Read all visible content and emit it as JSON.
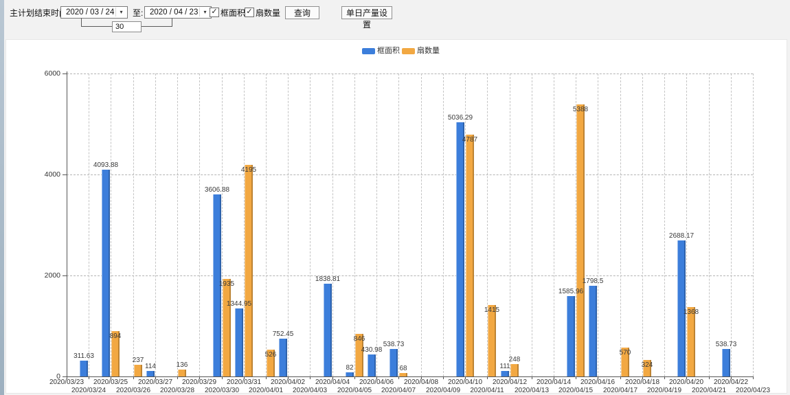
{
  "icons": {
    "check": "✓",
    "dropdown": "▾"
  },
  "toolbar": {
    "label": "主计划结束时间:",
    "date_from": "2020 / 03 / 24",
    "to_label": "至:",
    "date_to": "2020 / 04 / 23",
    "interval_days": "30",
    "checkbox_frame_label": "框面积",
    "checkbox_fans_label": "扇数量",
    "query_button": "查询",
    "daily_output_button": "单日产量设置"
  },
  "legend": [
    {
      "label": "框面积",
      "color": "#3c7edb"
    },
    {
      "label": "扇数量",
      "color": "#f2a842"
    }
  ],
  "chart_data": {
    "type": "bar",
    "title": "",
    "xlabel": "",
    "ylabel": "",
    "ylim": [
      0,
      6000
    ],
    "yticks": [
      0,
      2000,
      4000,
      6000
    ],
    "grid": true,
    "legend_position": "top",
    "categories": [
      "2020/03/23",
      "2020/03/24",
      "2020/03/25",
      "2020/03/26",
      "2020/03/27",
      "2020/03/28",
      "2020/03/29",
      "2020/03/30",
      "2020/03/31",
      "2020/04/01",
      "2020/04/02",
      "2020/04/03",
      "2020/04/04",
      "2020/04/05",
      "2020/04/06",
      "2020/04/07",
      "2020/04/08",
      "2020/04/09",
      "2020/04/10",
      "2020/04/11",
      "2020/04/12",
      "2020/04/13",
      "2020/04/14",
      "2020/04/15",
      "2020/04/16",
      "2020/04/17",
      "2020/04/18",
      "2020/04/19",
      "2020/04/20",
      "2020/04/21",
      "2020/04/22",
      "2020/04/23"
    ],
    "series": [
      {
        "name": "框面积",
        "color": "#3c7edb",
        "values": [
          null,
          311.63,
          4093.88,
          null,
          114,
          null,
          null,
          3606.88,
          1344.95,
          null,
          752.45,
          null,
          1838.81,
          82,
          430.98,
          538.73,
          null,
          null,
          5036.29,
          null,
          111,
          null,
          null,
          1585.96,
          1798.5,
          null,
          null,
          null,
          2688.17,
          null,
          538.73,
          null
        ]
      },
      {
        "name": "扇数量",
        "color": "#f2a842",
        "values": [
          null,
          null,
          894,
          237,
          null,
          136,
          null,
          1935,
          4195,
          526,
          null,
          null,
          null,
          846,
          null,
          68,
          null,
          null,
          4787,
          1415,
          248,
          null,
          null,
          5388,
          null,
          570,
          324,
          null,
          1368,
          null,
          null,
          null
        ]
      }
    ]
  }
}
